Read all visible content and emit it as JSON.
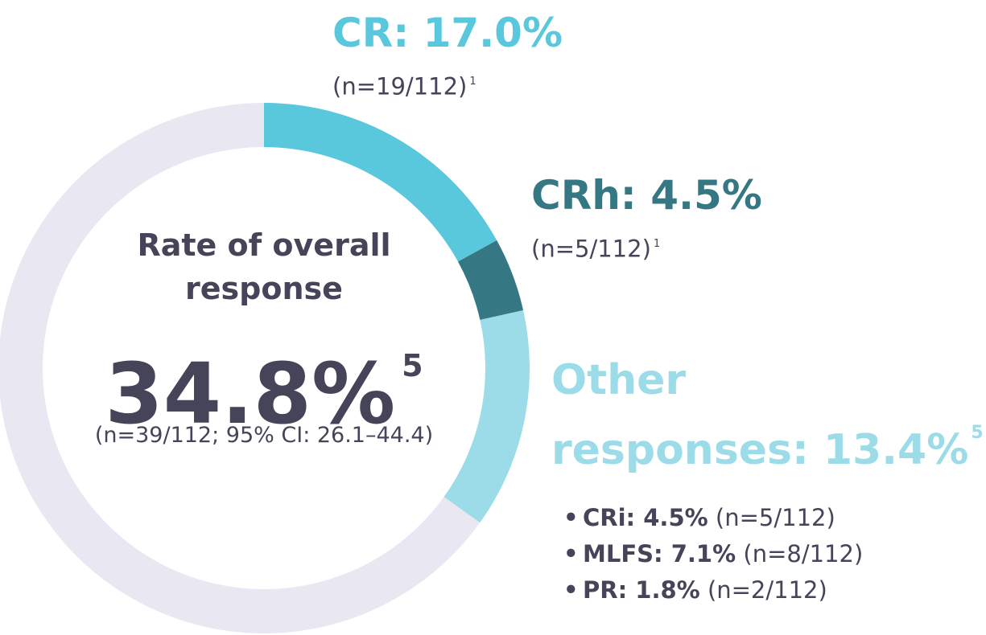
{
  "colors": {
    "track": "#e8e7f2",
    "cr": "#5ac8dc",
    "crh": "#357883",
    "other": "#9bdce8",
    "text": "#454458"
  },
  "chart_data": {
    "type": "pie",
    "variant": "donut",
    "slices": [
      {
        "label": "CR",
        "value": 17.0,
        "color": "#5ac8dc"
      },
      {
        "label": "CRh",
        "value": 4.5,
        "color": "#357883"
      },
      {
        "label": "Other responses",
        "value": 13.4,
        "color": "#9bdce8"
      },
      {
        "label": "",
        "value": 65.1,
        "color": "#e8e7f2"
      }
    ]
  },
  "center": {
    "title": "Rate of overall response",
    "value": "34.8%",
    "value_sup": "5",
    "subtitle": "(n=39/112; 95% CI: 26.1–44.4)"
  },
  "callouts": {
    "cr": {
      "title": "CR: 17.0%",
      "n": "(n=19/112)",
      "sup": "1"
    },
    "crh": {
      "title": "CRh: 4.5%",
      "n": "(n=5/112)",
      "sup": "1"
    },
    "other": {
      "title_line1": "Other",
      "title_line2": "responses: 13.4%",
      "sup": "5"
    }
  },
  "other_breakdown": [
    {
      "bullet": "•",
      "label": "CRi: 4.5%",
      "n": "(n=5/112)"
    },
    {
      "bullet": "•",
      "label": "MLFS: 7.1%",
      "n": "(n=8/112)"
    },
    {
      "bullet": "•",
      "label": "PR: 1.8%",
      "n": "(n=2/112)"
    }
  ]
}
